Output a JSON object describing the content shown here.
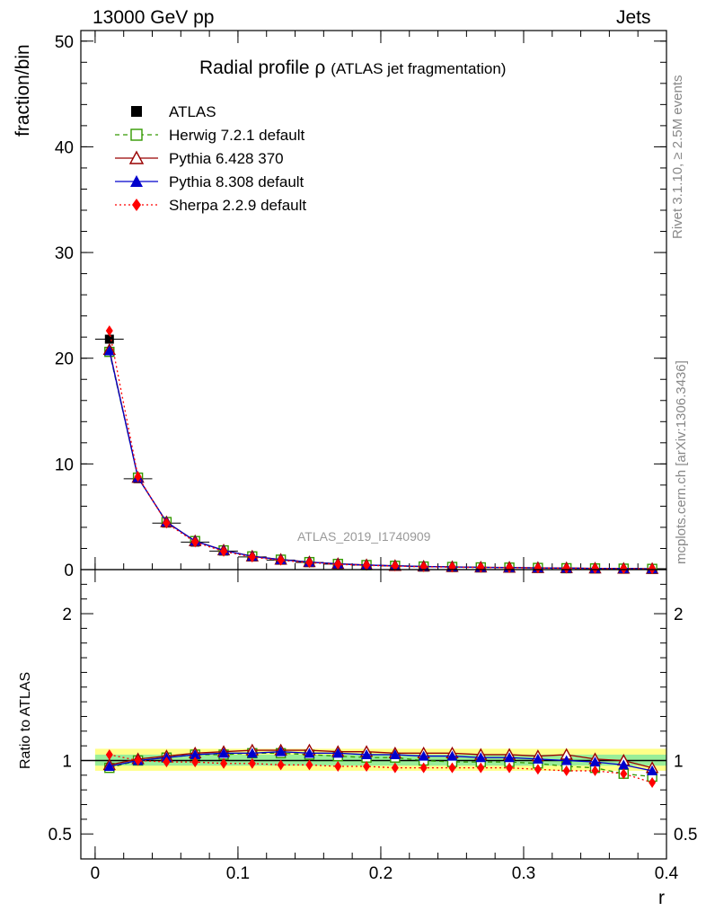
{
  "header": {
    "energy_label": "13000 GeV pp",
    "process_label": "Jets"
  },
  "side_labels": {
    "rivet": "Rivet 3.1.10, ≥ 2.5M events",
    "mcplots": "mcplots.cern.ch [arXiv:1306.3436]"
  },
  "chart_data": {
    "type": "scatter",
    "title": "Radial profile ρ",
    "subtitle": "(ATLAS jet fragmentation)",
    "watermark": "ATLAS_2019_I1740909",
    "xlabel": "r",
    "ylabel_main": "fraction/bin",
    "ylabel_ratio": "Ratio to ATLAS",
    "xlim": [
      -0.01,
      0.4
    ],
    "ylim_main": [
      0,
      51
    ],
    "ylim_ratio": [
      0.33,
      2.3
    ],
    "x_ticks": [
      "0",
      "0.1",
      "0.2",
      "0.3",
      "0.4"
    ],
    "y_ticks_main": [
      "0",
      "10",
      "20",
      "30",
      "40",
      "50"
    ],
    "y_ticks_ratio": [
      "0.5",
      "1",
      "2"
    ],
    "legend_position": "top-left",
    "x": [
      0.01,
      0.03,
      0.05,
      0.07,
      0.09,
      0.11,
      0.13,
      0.15,
      0.17,
      0.19,
      0.21,
      0.23,
      0.25,
      0.27,
      0.29,
      0.31,
      0.33,
      0.35,
      0.37,
      0.39
    ],
    "series": [
      {
        "name": "ATLAS",
        "color": "#000000",
        "marker": "square-filled",
        "line": "none",
        "values": [
          21.8,
          8.6,
          4.4,
          2.6,
          1.75,
          1.2,
          0.9,
          0.68,
          0.52,
          0.42,
          0.35,
          0.29,
          0.25,
          0.21,
          0.19,
          0.16,
          0.14,
          0.12,
          0.1,
          0.08
        ],
        "ratio": [
          1,
          1,
          1,
          1,
          1,
          1,
          1,
          1,
          1,
          1,
          1,
          1,
          1,
          1,
          1,
          1,
          1,
          1,
          1,
          1
        ]
      },
      {
        "name": "Herwig 7.2.1 default",
        "color": "#339900",
        "marker": "square-open",
        "line": "dashed",
        "values": [
          20.6,
          8.7,
          4.5,
          2.7,
          1.82,
          1.25,
          0.94,
          0.71,
          0.54,
          0.43,
          0.36,
          0.29,
          0.25,
          0.21,
          0.19,
          0.16,
          0.13,
          0.11,
          0.09,
          0.07
        ],
        "ratio": [
          0.95,
          1.0,
          1.02,
          1.04,
          1.04,
          1.05,
          1.05,
          1.04,
          1.03,
          1.02,
          1.02,
          1.0,
          0.99,
          0.99,
          0.99,
          0.98,
          0.96,
          0.95,
          0.91,
          0.89
        ]
      },
      {
        "name": "Pythia 6.428 370",
        "color": "#990000",
        "marker": "triangle-open",
        "line": "solid",
        "values": [
          20.8,
          8.7,
          4.5,
          2.7,
          1.83,
          1.26,
          0.95,
          0.72,
          0.55,
          0.44,
          0.36,
          0.3,
          0.26,
          0.22,
          0.2,
          0.17,
          0.15,
          0.12,
          0.1,
          0.08
        ],
        "ratio": [
          0.97,
          1.01,
          1.03,
          1.05,
          1.06,
          1.07,
          1.07,
          1.07,
          1.06,
          1.06,
          1.05,
          1.05,
          1.05,
          1.04,
          1.04,
          1.03,
          1.04,
          1.01,
          1.0,
          0.95
        ]
      },
      {
        "name": "Pythia 8.308 default",
        "color": "#0000cc",
        "marker": "triangle-filled",
        "line": "solid",
        "values": [
          20.7,
          8.7,
          4.5,
          2.7,
          1.82,
          1.25,
          0.94,
          0.71,
          0.54,
          0.43,
          0.36,
          0.3,
          0.25,
          0.21,
          0.19,
          0.16,
          0.14,
          0.11,
          0.1,
          0.07
        ],
        "ratio": [
          0.96,
          1.0,
          1.02,
          1.04,
          1.05,
          1.05,
          1.06,
          1.05,
          1.05,
          1.04,
          1.04,
          1.03,
          1.03,
          1.02,
          1.02,
          1.01,
          1.0,
          0.99,
          0.97,
          0.93
        ]
      },
      {
        "name": "Sherpa 2.2.9 default",
        "color": "#ff0000",
        "marker": "diamond-filled",
        "line": "dotted",
        "values": [
          22.6,
          8.8,
          4.4,
          2.6,
          1.72,
          1.18,
          0.88,
          0.66,
          0.5,
          0.4,
          0.33,
          0.27,
          0.23,
          0.2,
          0.18,
          0.15,
          0.13,
          0.11,
          0.09,
          0.07
        ],
        "ratio": [
          1.04,
          1.0,
          0.99,
          0.99,
          0.98,
          0.98,
          0.97,
          0.97,
          0.96,
          0.96,
          0.95,
          0.95,
          0.95,
          0.95,
          0.95,
          0.94,
          0.93,
          0.93,
          0.91,
          0.85
        ]
      }
    ]
  }
}
